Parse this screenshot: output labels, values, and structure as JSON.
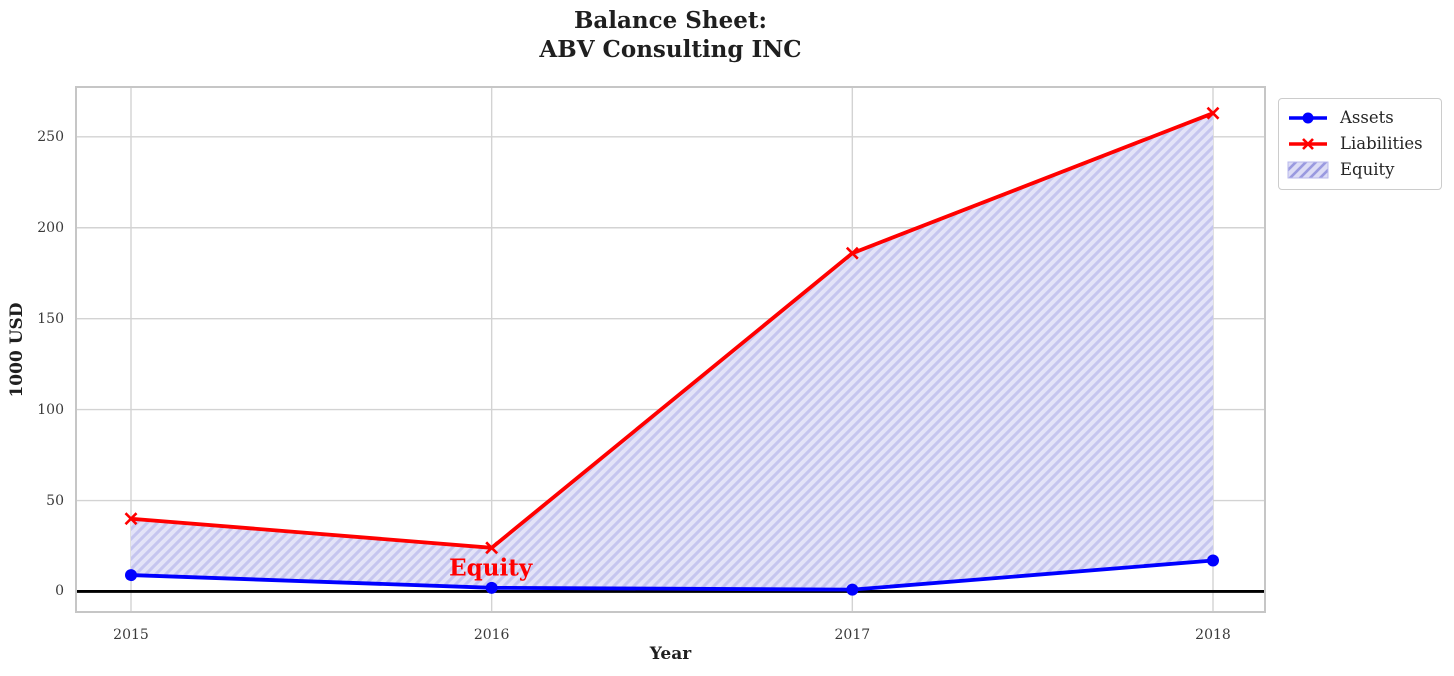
{
  "title": "Balance Sheet:\nABV Consulting INC",
  "chart_data": {
    "type": "line",
    "title": "Balance Sheet:\nABV Consulting INC",
    "xlabel": "Year",
    "ylabel": "1000 USD",
    "x": [
      2015,
      2016,
      2017,
      2018
    ],
    "xticks": [
      "2015",
      "2016",
      "2017",
      "2018"
    ],
    "yticks": [
      0,
      50,
      100,
      150,
      200,
      250
    ],
    "ylim": [
      -11.3,
      277.4
    ],
    "grid": true,
    "zero_line": true,
    "legend_position": "upper-right-outside",
    "series": [
      {
        "name": "Assets",
        "color": "#0000ff",
        "marker": "circle",
        "values": [
          9,
          2,
          1,
          17
        ]
      },
      {
        "name": "Liabilities",
        "color": "#ff0000",
        "marker": "x",
        "values": [
          40,
          24,
          186,
          263
        ]
      }
    ],
    "area": {
      "name": "Equity",
      "between": [
        "Assets",
        "Liabilities"
      ],
      "fill_color": "#e3e3f8",
      "hatch": "//",
      "hatch_color": "#c5c5ef"
    },
    "annotation": {
      "text": "Equity",
      "x": 2016,
      "y": 13,
      "color": "#ff0000"
    }
  },
  "colors": {
    "grid": "#d3d3d3",
    "spine": "#c6c6c6",
    "zero_line": "#000000",
    "tick_text": "#3a3a3a",
    "title_text": "#1f1f1f"
  }
}
